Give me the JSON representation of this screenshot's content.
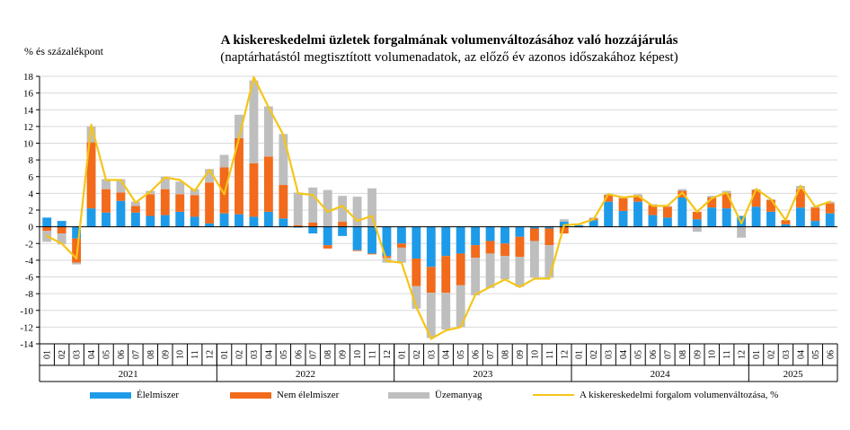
{
  "title": "A kiskereskedelmi üzletek forgalmának volumenváltozásához való hozzájárulás",
  "subtitle": "(naptárhatástól megtisztított volumenadatok, az előző év azonos időszakához képest)",
  "ylabel": "% és százalékpont",
  "colors": {
    "food": "#1e9be8",
    "nonfood": "#f26a1b",
    "fuel": "#bebebe",
    "line": "#f5c518",
    "axis": "#000000",
    "grid": "#d9d9d9"
  },
  "chart_data": {
    "type": "bar",
    "stacked": true,
    "ylim": [
      -14,
      18
    ],
    "yticks": [
      -14,
      -12,
      -10,
      -8,
      -6,
      -4,
      -2,
      0,
      2,
      4,
      6,
      8,
      10,
      12,
      14,
      16,
      18
    ],
    "grid": true,
    "legend_position": "bottom",
    "years": [
      "2021",
      "2022",
      "2023",
      "2024",
      "2025"
    ],
    "categories": [
      "01",
      "02",
      "03",
      "04",
      "05",
      "06",
      "07",
      "08",
      "09",
      "10",
      "11",
      "12",
      "01",
      "02",
      "03",
      "04",
      "05",
      "06",
      "07",
      "08",
      "09",
      "10",
      "11",
      "12",
      "01",
      "02",
      "03",
      "04",
      "05",
      "06",
      "07",
      "08",
      "09",
      "10",
      "11",
      "12",
      "01",
      "02",
      "03",
      "04",
      "05",
      "06",
      "07",
      "08",
      "09",
      "10",
      "11",
      "12",
      "01",
      "02",
      "03",
      "04",
      "05",
      "06"
    ],
    "series": [
      {
        "name": "Élelmiszer",
        "kind": "bar",
        "values": [
          1.1,
          0.7,
          -1.4,
          2.2,
          1.7,
          3.1,
          1.7,
          1.3,
          1.4,
          1.8,
          1.2,
          0.4,
          1.6,
          1.5,
          1.2,
          1.8,
          1.0,
          -0.1,
          -0.8,
          -2.2,
          -1.1,
          -2.8,
          -3.2,
          -3.5,
          -2.0,
          -3.8,
          -4.8,
          -3.5,
          -3.2,
          -2.2,
          -1.7,
          -2.0,
          -1.2,
          -0.2,
          -0.2,
          0.6,
          0.2,
          0.8,
          3.0,
          1.9,
          3.0,
          1.4,
          1.1,
          3.5,
          0.9,
          2.3,
          2.2,
          1.3,
          2.4,
          1.8,
          0.3,
          2.3,
          0.7,
          1.6
        ]
      },
      {
        "name": "Nem élelmiszer",
        "kind": "bar",
        "values": [
          -0.5,
          -0.8,
          -2.9,
          7.9,
          2.8,
          1.0,
          0.8,
          2.6,
          3.1,
          2.1,
          2.6,
          4.9,
          5.5,
          9.1,
          6.4,
          6.6,
          4.0,
          0.2,
          0.5,
          -0.4,
          0.6,
          -0.1,
          -0.1,
          -0.2,
          -0.5,
          -3.3,
          -3.1,
          -4.4,
          -3.8,
          -1.5,
          -1.5,
          -1.5,
          -2.4,
          -1.5,
          -2.0,
          -0.8,
          0.0,
          0.2,
          0.8,
          1.5,
          0.6,
          1.2,
          1.3,
          0.8,
          0.9,
          1.2,
          1.8,
          0.0,
          2.0,
          1.4,
          0.5,
          2.2,
          1.6,
          1.2
        ]
      },
      {
        "name": "Üzemanyag",
        "kind": "bar",
        "values": [
          -1.3,
          -1.3,
          -0.2,
          1.9,
          1.2,
          1.6,
          0.5,
          0.4,
          1.5,
          1.5,
          0.7,
          1.6,
          1.5,
          2.8,
          9.9,
          6.0,
          6.1,
          3.9,
          4.2,
          4.4,
          3.1,
          3.6,
          4.6,
          -0.6,
          -1.8,
          -2.7,
          -5.4,
          -4.4,
          -5.0,
          -4.5,
          -4.1,
          -2.8,
          -3.6,
          -4.4,
          -3.9,
          0.3,
          -0.1,
          0.1,
          0.1,
          0.1,
          0.3,
          0.1,
          0.1,
          0.2,
          -0.6,
          0.2,
          0.3,
          -1.3,
          0.1,
          0.1,
          0.0,
          0.4,
          0.1,
          0.2
        ]
      },
      {
        "name": "A kiskereskedelmi forgalom volumenváltozása, %",
        "kind": "line",
        "values": [
          -1.1,
          -2.0,
          -3.8,
          12.2,
          5.6,
          5.6,
          2.9,
          4.2,
          5.9,
          5.6,
          4.3,
          6.8,
          3.9,
          10.6,
          17.9,
          14.3,
          11.0,
          4.0,
          3.8,
          1.8,
          2.5,
          0.7,
          1.3,
          -4.1,
          -4.3,
          -9.6,
          -13.4,
          -12.4,
          -12.0,
          -8.1,
          -7.2,
          -6.3,
          -7.2,
          -6.2,
          -6.2,
          0.2,
          0.3,
          0.9,
          3.9,
          3.5,
          3.7,
          2.5,
          2.5,
          4.1,
          1.8,
          3.4,
          4.1,
          0.4,
          4.5,
          3.3,
          0.8,
          4.9,
          2.4,
          3.0
        ]
      }
    ]
  }
}
